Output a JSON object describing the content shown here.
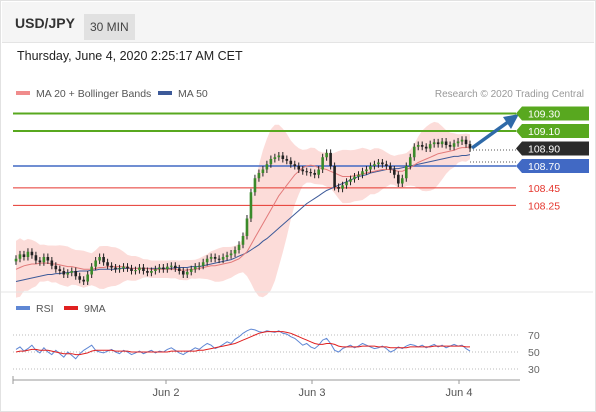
{
  "header": {
    "pair": "USD/JPY",
    "timeframe": "30 MIN"
  },
  "date_line": "Thursday, June 4, 2020 2:25:17 AM CET",
  "legend": {
    "ma20": "MA 20 + Bollinger Bands",
    "ma50": "MA 50",
    "credit": "Research © 2020 Trading Central"
  },
  "rsi_legend": {
    "rsi": "RSI",
    "ma9": "9MA"
  },
  "colors": {
    "resistance": "#58a81f",
    "support_blue": "#4169c4",
    "support_red": "#e5352d",
    "ma20": "#e27a7a",
    "ma50": "#3d5a99",
    "arrow": "#2f6aa8",
    "bollinger": "#fbd3d0",
    "rsi": "#5f87d4",
    "rsi_ma": "#e02020"
  },
  "chart_data": [
    {
      "type": "candlestick",
      "title": "USD/JPY",
      "timeframe": "30 MIN",
      "x_ticks": [
        "Jun 2",
        "Jun 3",
        "Jun 4"
      ],
      "ylim": [
        107.0,
        109.4
      ],
      "levels": [
        {
          "value": 109.3,
          "label": "109.30",
          "kind": "resistance"
        },
        {
          "value": 109.1,
          "label": "109.10",
          "kind": "resistance"
        },
        {
          "value": 108.9,
          "label": "108.90",
          "kind": "last"
        },
        {
          "value": 108.7,
          "label": "108.70",
          "kind": "support"
        },
        {
          "value": 108.45,
          "label": "108.45",
          "kind": "support"
        },
        {
          "value": 108.25,
          "label": "108.25",
          "kind": "support"
        }
      ],
      "close": [
        107.64,
        107.69,
        107.66,
        107.72,
        107.68,
        107.62,
        107.6,
        107.66,
        107.62,
        107.56,
        107.52,
        107.5,
        107.46,
        107.48,
        107.5,
        107.44,
        107.4,
        107.38,
        107.46,
        107.55,
        107.62,
        107.66,
        107.6,
        107.56,
        107.54,
        107.52,
        107.53,
        107.55,
        107.53,
        107.5,
        107.51,
        107.54,
        107.5,
        107.48,
        107.5,
        107.52,
        107.54,
        107.52,
        107.55,
        107.56,
        107.53,
        107.5,
        107.46,
        107.49,
        107.52,
        107.55,
        107.56,
        107.6,
        107.64,
        107.66,
        107.64,
        107.63,
        107.66,
        107.68,
        107.7,
        107.74,
        107.8,
        107.9,
        108.1,
        108.4,
        108.56,
        108.62,
        108.66,
        108.72,
        108.78,
        108.8,
        108.82,
        108.78,
        108.76,
        108.72,
        108.7,
        108.66,
        108.64,
        108.63,
        108.62,
        108.6,
        108.66,
        108.8,
        108.85,
        108.7,
        108.46,
        108.44,
        108.48,
        108.52,
        108.55,
        108.58,
        108.6,
        108.64,
        108.66,
        108.7,
        108.72,
        108.74,
        108.72,
        108.7,
        108.66,
        108.6,
        108.5,
        108.56,
        108.7,
        108.8,
        108.92,
        108.94,
        108.92,
        108.9,
        108.95,
        108.97,
        108.95,
        108.98,
        108.94,
        108.92,
        108.96,
        108.98,
        109.0,
        108.95,
        108.9
      ],
      "ma20": [
        107.52,
        107.54,
        107.56,
        107.57,
        107.58,
        107.58,
        107.59,
        107.59,
        107.59,
        107.58,
        107.58,
        107.57,
        107.56,
        107.55,
        107.55,
        107.54,
        107.53,
        107.52,
        107.52,
        107.52,
        107.53,
        107.54,
        107.54,
        107.55,
        107.55,
        107.55,
        107.55,
        107.55,
        107.54,
        107.53,
        107.53,
        107.53,
        107.53,
        107.53,
        107.52,
        107.52,
        107.52,
        107.52,
        107.52,
        107.52,
        107.52,
        107.51,
        107.51,
        107.51,
        107.52,
        107.52,
        107.53,
        107.54,
        107.55,
        107.56,
        107.56,
        107.57,
        107.58,
        107.59,
        107.6,
        107.62,
        107.64,
        107.68,
        107.72,
        107.8,
        107.88,
        107.96,
        108.04,
        108.12,
        108.2,
        108.28,
        108.36,
        108.42,
        108.48,
        108.54,
        108.6,
        108.64,
        108.68,
        108.7,
        108.71,
        108.7,
        108.68,
        108.67,
        108.66,
        108.64,
        108.62,
        108.6,
        108.58,
        108.58,
        108.58,
        108.59,
        108.6,
        108.61,
        108.62,
        108.63,
        108.64,
        108.65,
        108.66,
        108.66,
        108.66,
        108.65,
        108.64,
        108.64,
        108.66,
        108.68,
        108.71,
        108.74,
        108.76,
        108.78,
        108.8,
        108.82,
        108.84,
        108.85,
        108.86,
        108.87,
        108.88,
        108.9,
        108.91,
        108.91,
        108.92
      ],
      "ma50": [
        107.38,
        107.39,
        107.4,
        107.41,
        107.42,
        107.43,
        107.44,
        107.45,
        107.46,
        107.46,
        107.47,
        107.47,
        107.48,
        107.48,
        107.49,
        107.49,
        107.5,
        107.5,
        107.5,
        107.51,
        107.51,
        107.52,
        107.52,
        107.52,
        107.52,
        107.52,
        107.53,
        107.53,
        107.53,
        107.53,
        107.53,
        107.53,
        107.53,
        107.53,
        107.53,
        107.53,
        107.53,
        107.53,
        107.53,
        107.53,
        107.54,
        107.54,
        107.54,
        107.54,
        107.55,
        107.55,
        107.55,
        107.56,
        107.57,
        107.58,
        107.59,
        107.6,
        107.61,
        107.62,
        107.63,
        107.65,
        107.67,
        107.69,
        107.71,
        107.74,
        107.77,
        107.8,
        107.84,
        107.87,
        107.91,
        107.95,
        107.99,
        108.03,
        108.07,
        108.11,
        108.15,
        108.19,
        108.23,
        108.27,
        108.3,
        108.33,
        108.36,
        108.39,
        108.42,
        108.44,
        108.46,
        108.48,
        108.5,
        108.52,
        108.54,
        108.56,
        108.58,
        108.59,
        108.6,
        108.62,
        108.63,
        108.64,
        108.65,
        108.66,
        108.66,
        108.67,
        108.67,
        108.68,
        108.69,
        108.7,
        108.71,
        108.72,
        108.73,
        108.74,
        108.75,
        108.76,
        108.77,
        108.78,
        108.79,
        108.8,
        108.81,
        108.81,
        108.82,
        108.82,
        108.83
      ]
    },
    {
      "type": "line",
      "title": "RSI",
      "series_names": [
        "RSI",
        "9MA"
      ],
      "y_ticks": [
        70,
        50,
        30
      ],
      "ylim": [
        20,
        80
      ],
      "rsi": [
        53,
        56,
        51,
        54,
        58,
        52,
        49,
        55,
        50,
        47,
        52,
        48,
        44,
        50,
        46,
        42,
        48,
        52,
        55,
        58,
        52,
        50,
        49,
        51,
        53,
        50,
        48,
        52,
        50,
        47,
        49,
        51,
        48,
        50,
        52,
        49,
        51,
        50,
        53,
        55,
        52,
        49,
        47,
        50,
        52,
        55,
        53,
        57,
        60,
        58,
        54,
        56,
        59,
        62,
        60,
        65,
        68,
        72,
        75,
        77,
        76,
        74,
        73,
        75,
        74,
        73,
        75,
        72,
        71,
        68,
        66,
        62,
        58,
        60,
        56,
        54,
        58,
        64,
        66,
        60,
        52,
        50,
        54,
        56,
        58,
        55,
        57,
        60,
        58,
        56,
        54,
        55,
        57,
        54,
        50,
        52,
        56,
        54,
        57,
        59,
        58,
        56,
        58,
        55,
        57,
        59,
        56,
        58,
        55,
        57,
        59,
        57,
        58,
        54,
        51
      ],
      "ma9": [
        50,
        51,
        51,
        52,
        53,
        53,
        52,
        52,
        52,
        51,
        50,
        49,
        48,
        48,
        48,
        47,
        47,
        48,
        49,
        51,
        52,
        52,
        52,
        52,
        52,
        51,
        51,
        51,
        51,
        50,
        50,
        50,
        50,
        50,
        50,
        50,
        50,
        50,
        50,
        51,
        51,
        51,
        51,
        51,
        51,
        51,
        52,
        52,
        53,
        54,
        55,
        56,
        57,
        58,
        59,
        60,
        62,
        64,
        66,
        68,
        70,
        72,
        73,
        74,
        74,
        74,
        74,
        74,
        73,
        72,
        70,
        68,
        66,
        64,
        62,
        60,
        59,
        59,
        60,
        60,
        59,
        57,
        56,
        56,
        56,
        56,
        56,
        57,
        57,
        57,
        57,
        56,
        56,
        56,
        55,
        55,
        55,
        55,
        55,
        56,
        56,
        56,
        56,
        56,
        56,
        57,
        57,
        57,
        57,
        57,
        57,
        57,
        57,
        56,
        56
      ]
    }
  ]
}
